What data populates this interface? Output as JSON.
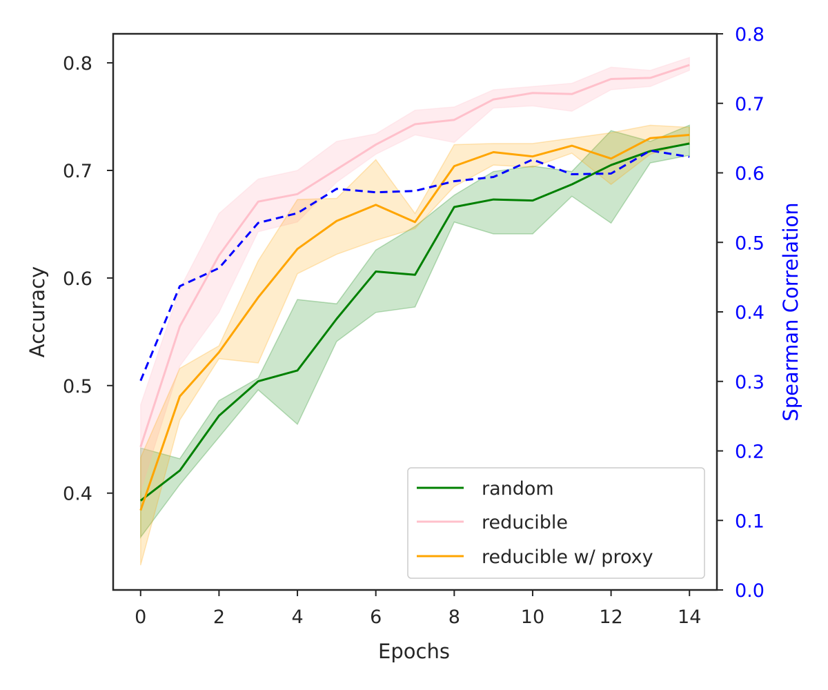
{
  "chart_data": {
    "type": "line",
    "title": "",
    "xlabel": "Epochs",
    "ylabel": "Accuracy",
    "ylabel_right": "Spearman Correlation",
    "x": [
      0,
      1,
      2,
      3,
      4,
      5,
      6,
      7,
      8,
      9,
      10,
      11,
      12,
      13,
      14
    ],
    "xlim": [
      -0.7,
      14.7
    ],
    "xticks": [
      "0",
      "2",
      "4",
      "6",
      "8",
      "10",
      "12",
      "14"
    ],
    "ylim": [
      0.31,
      0.827
    ],
    "yticks": [
      "0.4",
      "0.5",
      "0.6",
      "0.7",
      "0.8"
    ],
    "ylim_right": [
      0.0,
      0.8
    ],
    "yticks_right": [
      "0.0",
      "0.1",
      "0.2",
      "0.3",
      "0.4",
      "0.5",
      "0.6",
      "0.7",
      "0.8"
    ],
    "grid": false,
    "legend_position": "lower-right",
    "series": [
      {
        "name": "random",
        "axis": "left",
        "color": "#008000",
        "style": "solid",
        "values": [
          0.393,
          0.421,
          0.472,
          0.504,
          0.514,
          0.562,
          0.606,
          0.603,
          0.666,
          0.673,
          0.672,
          0.687,
          0.705,
          0.718,
          0.725
        ],
        "band_upper": [
          0.442,
          0.432,
          0.486,
          0.507,
          0.58,
          0.576,
          0.626,
          0.648,
          0.677,
          0.699,
          0.704,
          0.699,
          0.737,
          0.727,
          0.742
        ],
        "band_lower": [
          0.359,
          0.408,
          0.452,
          0.496,
          0.464,
          0.541,
          0.568,
          0.573,
          0.652,
          0.641,
          0.641,
          0.676,
          0.651,
          0.707,
          0.714
        ]
      },
      {
        "name": "reducible",
        "axis": "left",
        "color": "#ffc0cb",
        "style": "solid",
        "values": [
          0.443,
          0.555,
          0.621,
          0.671,
          0.678,
          0.701,
          0.724,
          0.743,
          0.747,
          0.766,
          0.772,
          0.771,
          0.785,
          0.786,
          0.798
        ],
        "band_upper": [
          0.482,
          0.59,
          0.66,
          0.692,
          0.7,
          0.727,
          0.734,
          0.756,
          0.759,
          0.775,
          0.778,
          0.781,
          0.796,
          0.793,
          0.805
        ],
        "band_lower": [
          0.402,
          0.518,
          0.568,
          0.643,
          0.652,
          0.689,
          0.715,
          0.733,
          0.726,
          0.758,
          0.76,
          0.755,
          0.775,
          0.778,
          0.793
        ]
      },
      {
        "name": "reducible w/ proxy",
        "axis": "left",
        "color": "#ffa500",
        "style": "solid",
        "values": [
          0.384,
          0.49,
          0.531,
          0.582,
          0.627,
          0.653,
          0.668,
          0.652,
          0.704,
          0.717,
          0.713,
          0.723,
          0.711,
          0.73,
          0.733
        ],
        "band_upper": [
          0.433,
          0.516,
          0.537,
          0.616,
          0.673,
          0.674,
          0.71,
          0.66,
          0.724,
          0.725,
          0.725,
          0.73,
          0.735,
          0.742,
          0.74
        ],
        "band_lower": [
          0.333,
          0.468,
          0.525,
          0.521,
          0.604,
          0.622,
          0.635,
          0.646,
          0.685,
          0.705,
          0.703,
          0.716,
          0.687,
          0.715,
          0.726
        ]
      },
      {
        "name": "spearman",
        "axis": "right",
        "color": "#0000ff",
        "style": "dashed",
        "values": [
          0.301,
          0.437,
          0.463,
          0.528,
          0.542,
          0.577,
          0.572,
          0.574,
          0.588,
          0.594,
          0.619,
          0.598,
          0.599,
          0.632,
          0.623
        ]
      }
    ],
    "legend": [
      "random",
      "reducible",
      "reducible w/ proxy"
    ]
  }
}
